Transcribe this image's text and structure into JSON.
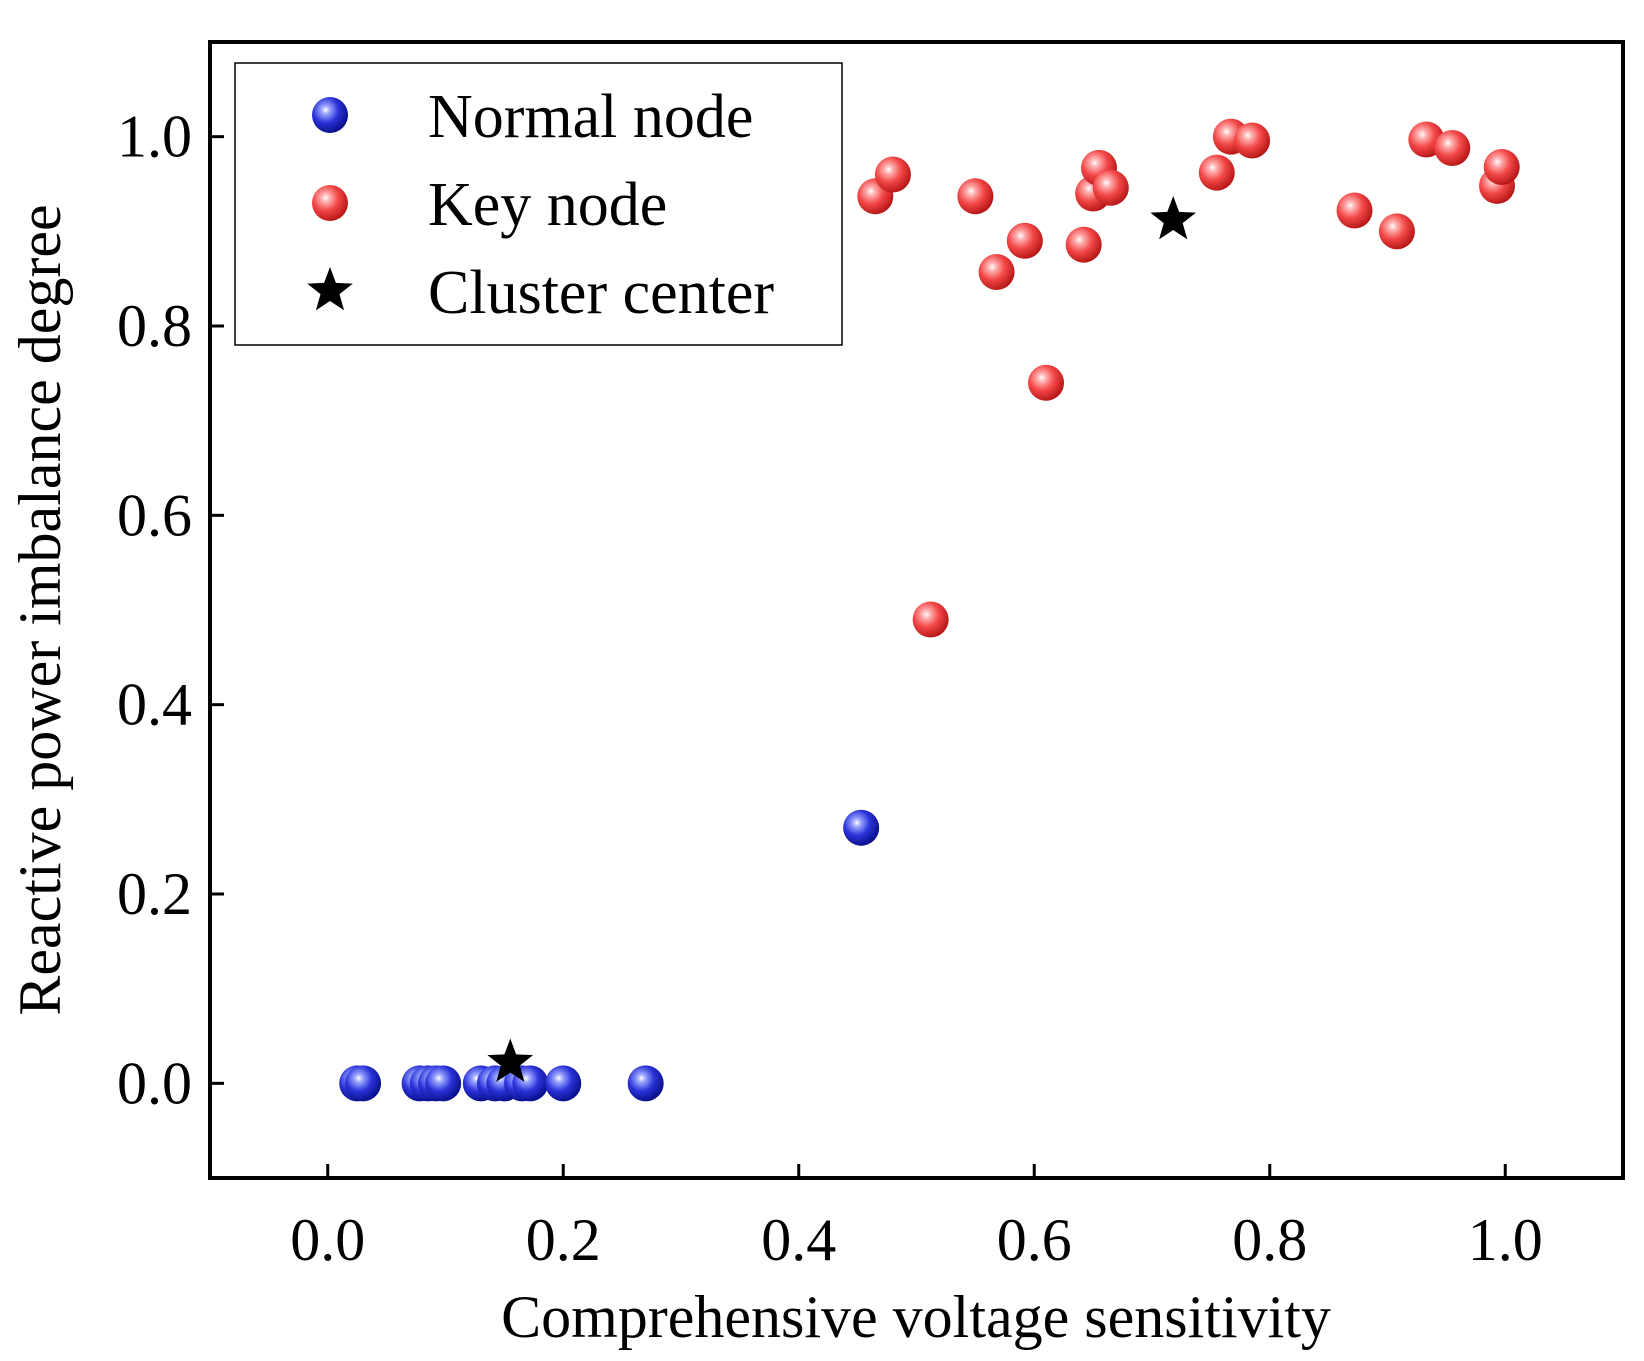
{
  "chart_data": {
    "type": "scatter",
    "title": "",
    "xlabel": "Comprehensive voltage sensitivity",
    "ylabel": "Reactive power imbalance degree",
    "xlim": [
      -0.1,
      1.1
    ],
    "ylim": [
      -0.1,
      1.1
    ],
    "xticks": [
      "0.0",
      "0.2",
      "0.4",
      "0.6",
      "0.8",
      "1.0"
    ],
    "yticks": [
      "0.0",
      "0.2",
      "0.4",
      "0.6",
      "0.8",
      "1.0"
    ],
    "grid": false,
    "legend_position": "top-left",
    "series": [
      {
        "name": "Normal node",
        "marker": "sphere",
        "color": "#1a22c8",
        "points": [
          [
            0.025,
            0.0
          ],
          [
            0.03,
            0.0
          ],
          [
            0.078,
            0.0
          ],
          [
            0.085,
            0.0
          ],
          [
            0.092,
            0.0
          ],
          [
            0.098,
            0.0
          ],
          [
            0.13,
            0.0
          ],
          [
            0.142,
            0.0
          ],
          [
            0.15,
            0.0
          ],
          [
            0.165,
            0.0
          ],
          [
            0.172,
            0.0
          ],
          [
            0.2,
            0.0
          ],
          [
            0.27,
            0.0
          ],
          [
            0.453,
            0.27
          ]
        ]
      },
      {
        "name": "Key node",
        "marker": "sphere",
        "color": "#ee3a3a",
        "points": [
          [
            0.465,
            0.937
          ],
          [
            0.48,
            0.96
          ],
          [
            0.512,
            0.49
          ],
          [
            0.55,
            0.937
          ],
          [
            0.568,
            0.857
          ],
          [
            0.592,
            0.89
          ],
          [
            0.61,
            0.74
          ],
          [
            0.642,
            0.886
          ],
          [
            0.65,
            0.94
          ],
          [
            0.655,
            0.967
          ],
          [
            0.665,
            0.946
          ],
          [
            0.755,
            0.962
          ],
          [
            0.767,
            1.0
          ],
          [
            0.785,
            0.996
          ],
          [
            0.872,
            0.922
          ],
          [
            0.908,
            0.9
          ],
          [
            0.933,
            0.997
          ],
          [
            0.955,
            0.988
          ],
          [
            0.993,
            0.948
          ],
          [
            0.997,
            0.968
          ]
        ]
      },
      {
        "name": "Cluster center",
        "marker": "star",
        "color": "#000000",
        "points": [
          [
            0.155,
            0.022
          ],
          [
            0.718,
            0.912
          ]
        ]
      }
    ]
  }
}
